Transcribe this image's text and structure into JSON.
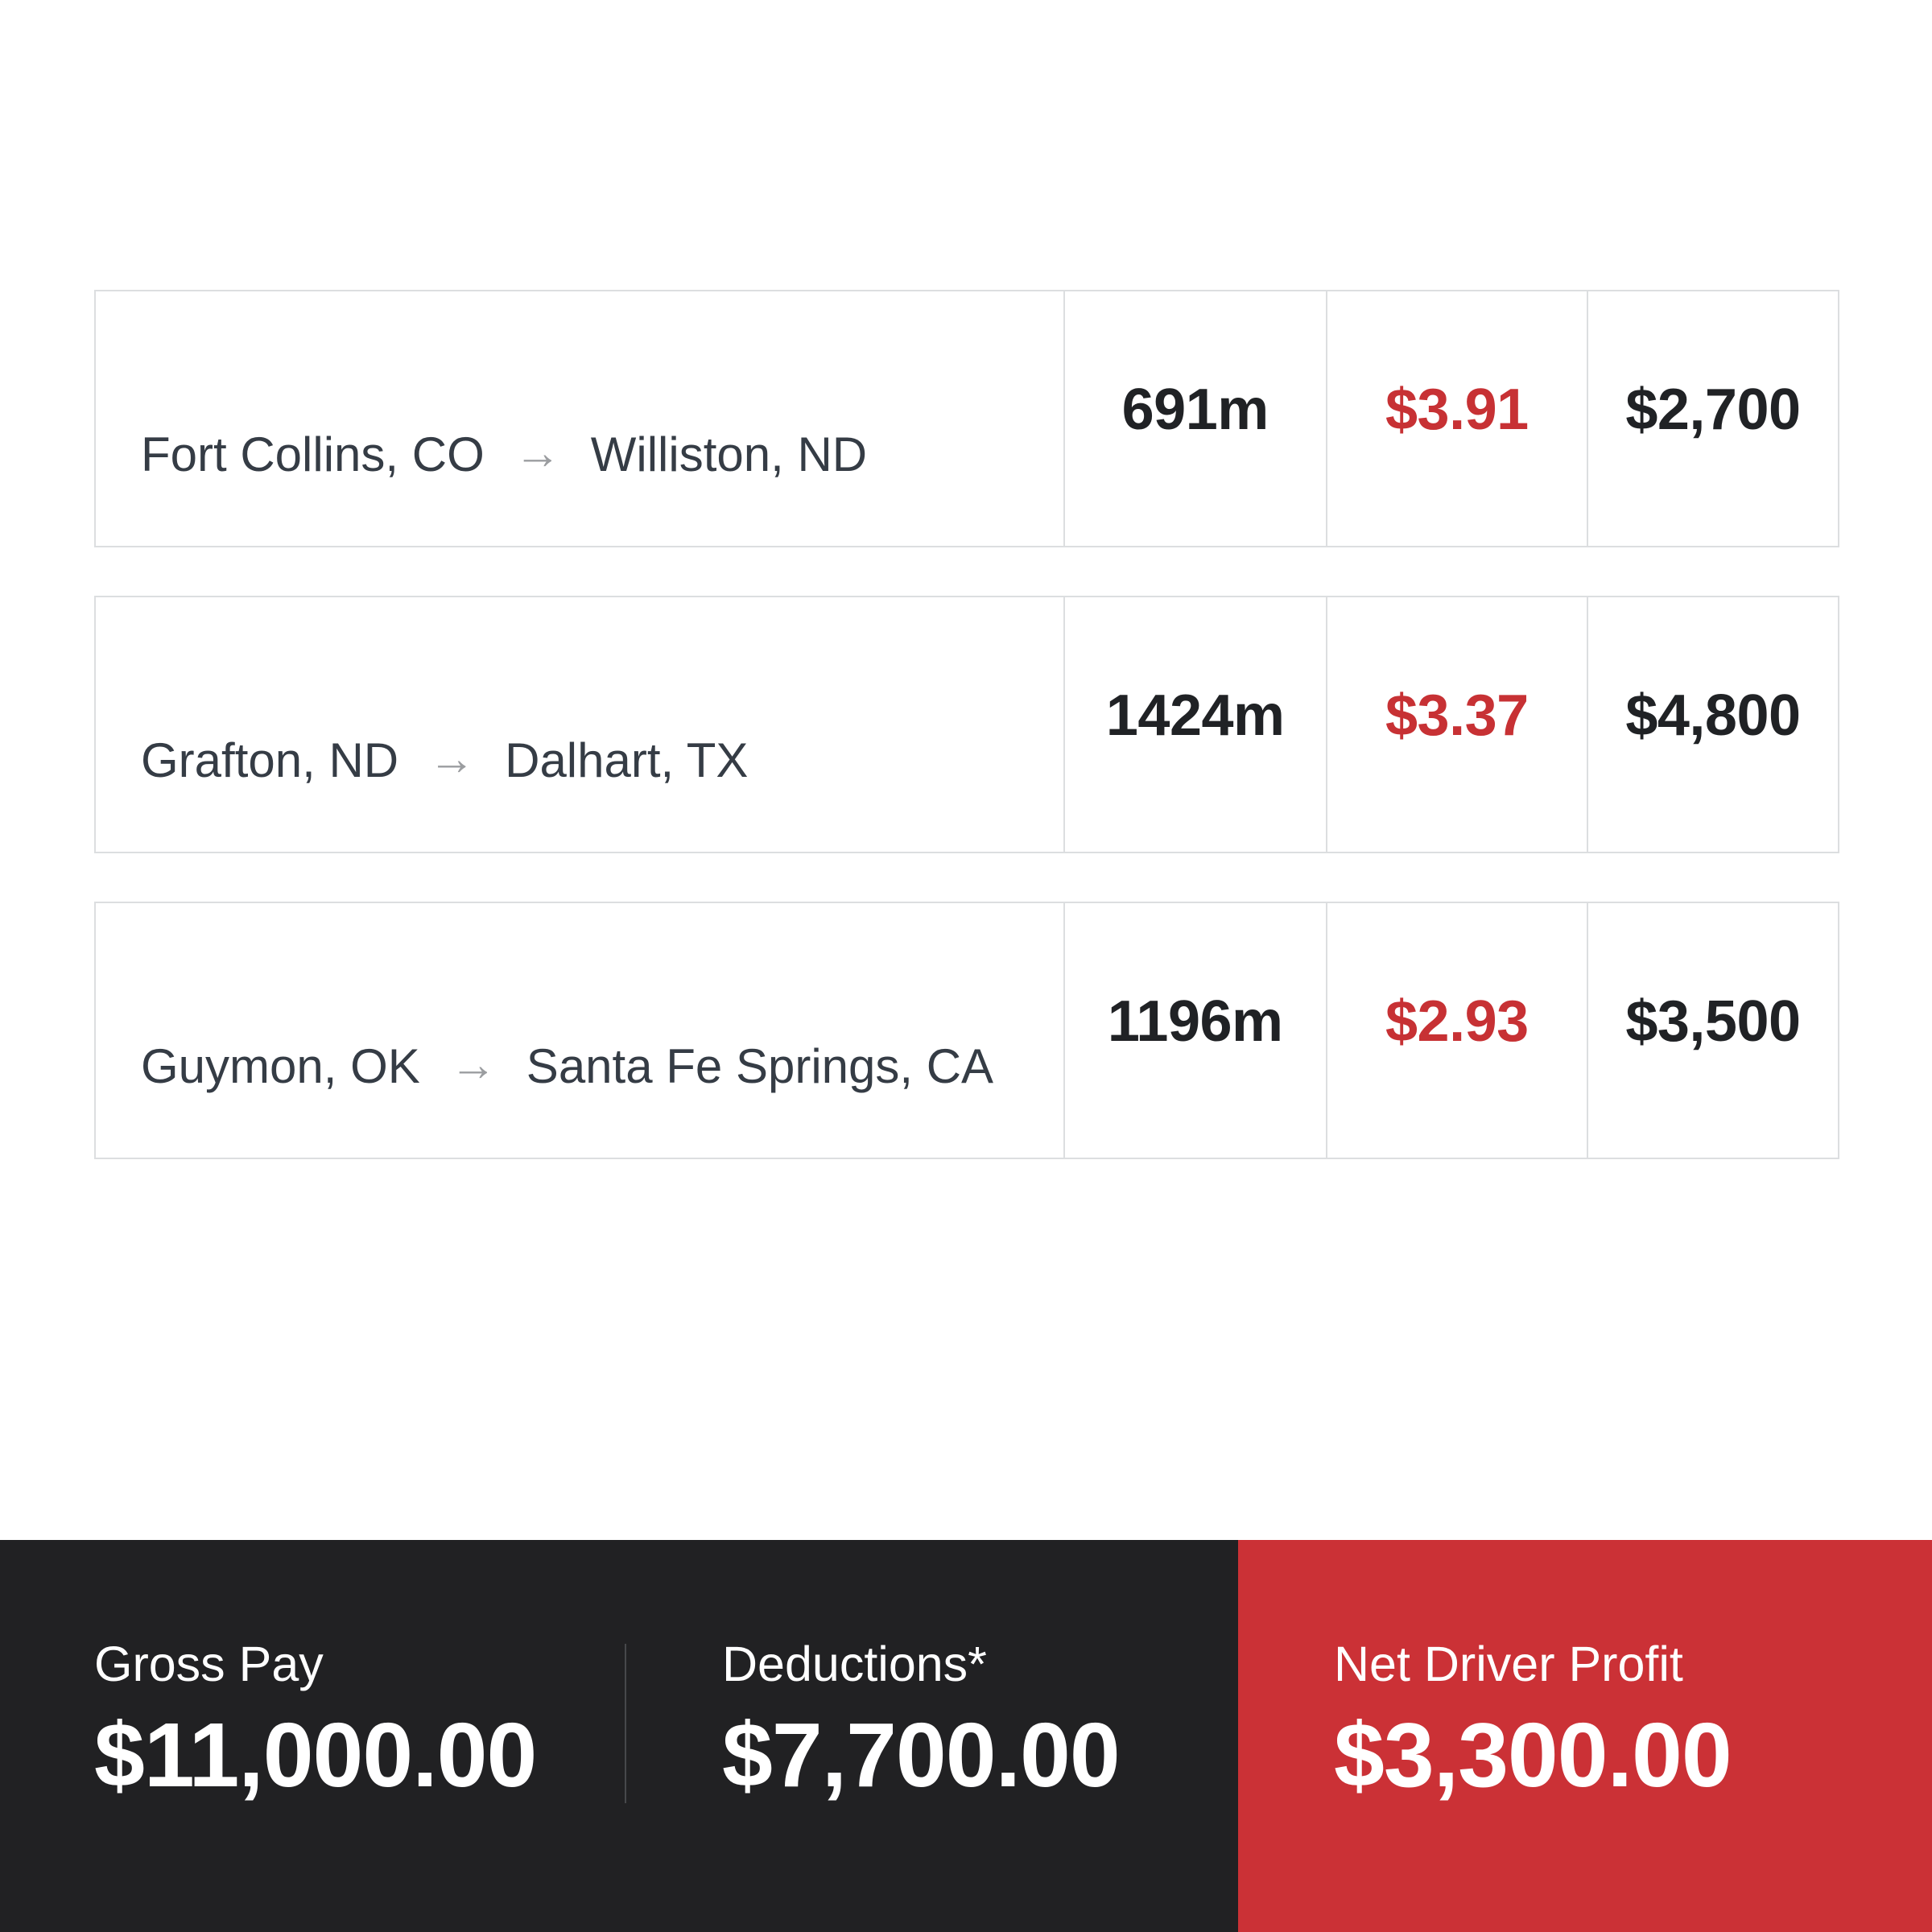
{
  "loads": [
    {
      "origin": "Fort Collins, CO",
      "destination": "Williston, ND",
      "miles": "691m",
      "rate_per_mile": "$3.91",
      "pay": "$2,700"
    },
    {
      "origin": "Grafton, ND",
      "destination": "Dalhart, TX",
      "miles": "1424m",
      "rate_per_mile": "$3.37",
      "pay": "$4,800"
    },
    {
      "origin": "Guymon, OK",
      "destination": "Santa Fe Springs, CA",
      "miles": "1196m",
      "rate_per_mile": "$2.93",
      "pay": "$3,500"
    }
  ],
  "icons": {
    "arrow_right": "→"
  },
  "summary": {
    "gross_pay": {
      "label": "Gross Pay",
      "value": "$11,000.00"
    },
    "deductions": {
      "label": "Deductions*",
      "value": "$7,700.00"
    },
    "net_profit": {
      "label": "Net Driver Profit",
      "value": "$3,300.00"
    }
  },
  "colors": {
    "rate_red": "#c73134",
    "footer_dark": "#212123",
    "footer_red": "#cb3136",
    "card_border": "#dcdee0",
    "route_text": "#353c45",
    "number_dark": "#202225",
    "arrow_gray": "#9b9da0",
    "footer_text": "#ffffff"
  }
}
